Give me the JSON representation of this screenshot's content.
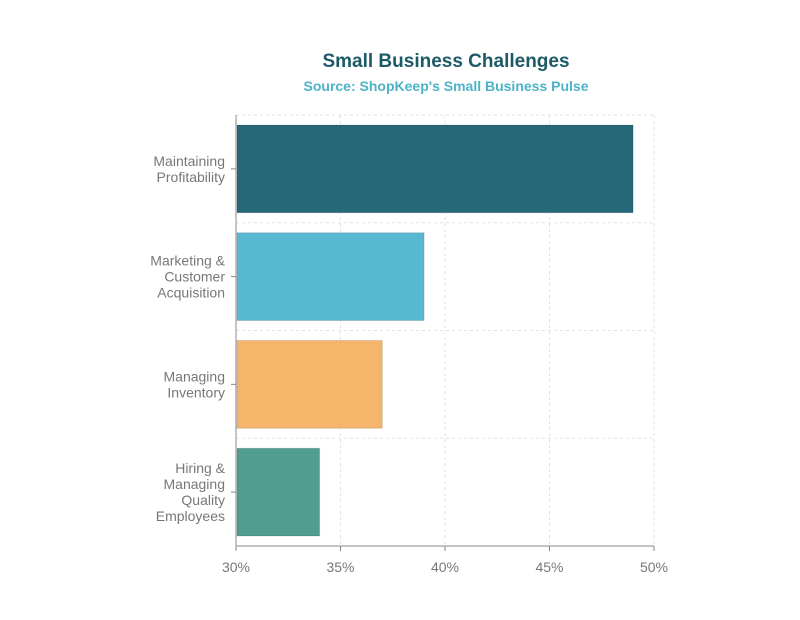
{
  "chart_data": {
    "type": "bar",
    "orientation": "horizontal",
    "title": "Small Business Challenges",
    "subtitle": "Source: ShopKeep's Small Business Pulse",
    "xlabel": "",
    "ylabel": "",
    "xlim": [
      30,
      50
    ],
    "x_ticks": [
      30,
      35,
      40,
      45,
      50
    ],
    "x_tick_format": "%",
    "grid": true,
    "categories": [
      {
        "label_lines": [
          "Maintaining",
          "Profitability"
        ]
      },
      {
        "label_lines": [
          "Marketing &",
          "Customer",
          "Acquisition"
        ]
      },
      {
        "label_lines": [
          "Managing",
          "Inventory"
        ]
      },
      {
        "label_lines": [
          "Hiring &",
          "Managing",
          "Quality",
          "Employees"
        ]
      }
    ],
    "values": [
      49,
      39,
      37,
      34
    ],
    "colors": [
      "#276878",
      "#56b9d1",
      "#f5b56b",
      "#4f9e90"
    ]
  }
}
